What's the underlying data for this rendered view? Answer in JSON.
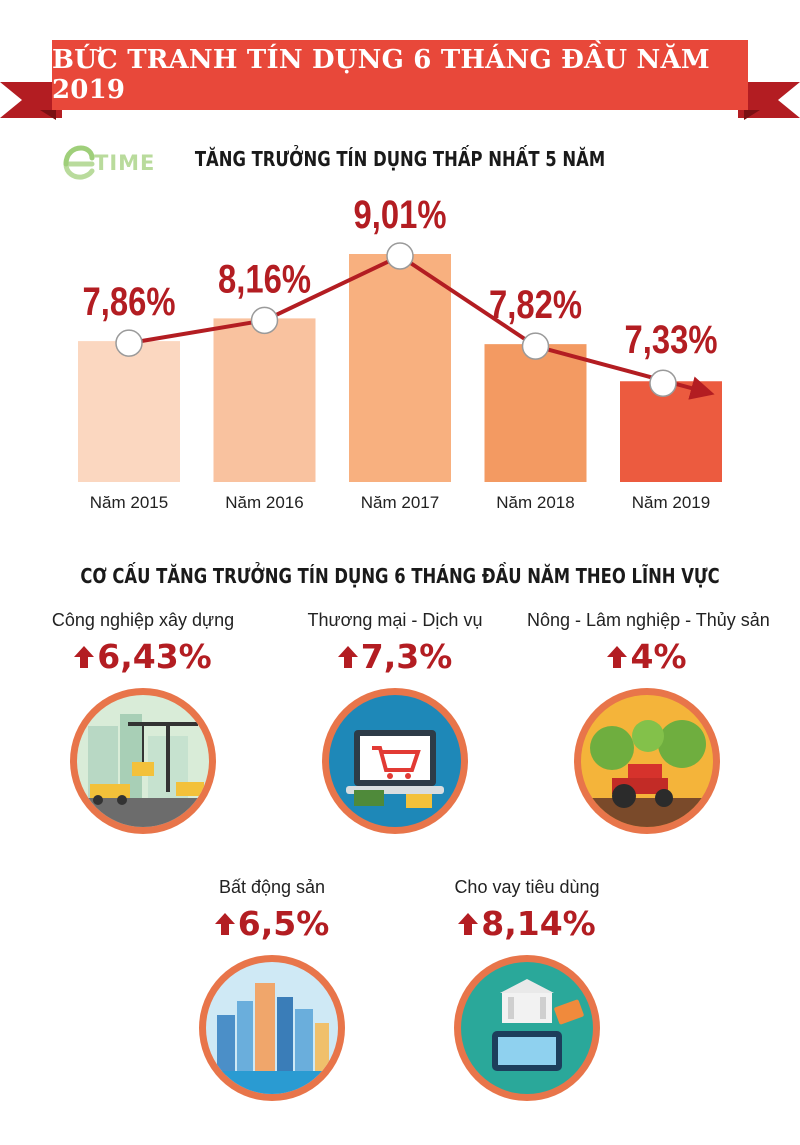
{
  "banner": {
    "title": "BỨC TRANH TÍN DỤNG 6 THÁNG ĐẦU NĂM 2019"
  },
  "logo": {
    "text": "TIME"
  },
  "colors": {
    "banner": "#e8483a",
    "ribbon": "#b31d22",
    "accent": "#b31d22",
    "line": "#b31d22"
  },
  "chart_data": {
    "type": "bar",
    "title": "TĂNG TRƯỞNG TÍN DỤNG THẤP NHẤT 5 NĂM",
    "categories": [
      "Năm 2015",
      "Năm 2016",
      "Năm 2017",
      "Năm 2018",
      "Năm 2019"
    ],
    "values": [
      7.86,
      8.16,
      9.01,
      7.82,
      7.33
    ],
    "labels": [
      "7,86%",
      "8,16%",
      "9,01%",
      "7,82%",
      "7,33%"
    ],
    "bar_colors": [
      "#fbd7c0",
      "#f9c29f",
      "#f8b07f",
      "#f39a62",
      "#ec5b3f"
    ],
    "overlay": "line",
    "grid": false,
    "legend": "none"
  },
  "structure": {
    "title": "CƠ CẤU TĂNG TRƯỞNG TÍN DỤNG 6 THÁNG ĐẦU NĂM THEO LĨNH VỰC",
    "sectors": [
      {
        "name": "Công nghiệp xây dựng",
        "value": "6,43%",
        "icon": "construction-illustration"
      },
      {
        "name": "Thương mại - Dịch vụ",
        "value": "7,3%",
        "icon": "shopping-cart-illustration"
      },
      {
        "name": "Nông - Lâm nghiệp - Thủy sản",
        "value": "4%",
        "icon": "tractor-farm-illustration"
      },
      {
        "name": "Bất động sản",
        "value": "6,5%",
        "icon": "city-buildings-illustration"
      },
      {
        "name": "Cho vay tiêu dùng",
        "value": "8,14%",
        "icon": "bank-credit-card-illustration"
      }
    ]
  }
}
